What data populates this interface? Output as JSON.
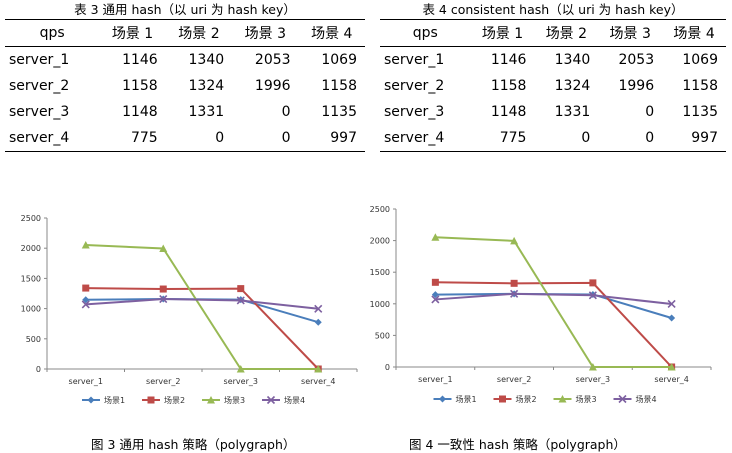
{
  "table3": {
    "caption": "表 3 通用 hash（以 uri 为 hash key）",
    "header": [
      "qps",
      "场景 1",
      "场景 2",
      "场景 3",
      "场景 4"
    ],
    "rows": [
      [
        "server_1",
        "1146",
        "1340",
        "2053",
        "1069"
      ],
      [
        "server_2",
        "1158",
        "1324",
        "1996",
        "1158"
      ],
      [
        "server_3",
        "1148",
        "1331",
        "0",
        "1135"
      ],
      [
        "server_4",
        "775",
        "0",
        "0",
        "997"
      ]
    ]
  },
  "table4": {
    "caption": "表 4 consistent hash（以 uri 为 hash key）",
    "header": [
      "qps",
      "场景 1",
      "场景 2",
      "场景 3",
      "场景 4"
    ],
    "rows": [
      [
        "server_1",
        "1146",
        "1340",
        "2053",
        "1069"
      ],
      [
        "server_2",
        "1158",
        "1324",
        "1996",
        "1158"
      ],
      [
        "server_3",
        "1148",
        "1331",
        "0",
        "1135"
      ],
      [
        "server_4",
        "775",
        "0",
        "0",
        "997"
      ]
    ]
  },
  "figure3_caption": "图 3 通用 hash 策略（polygraph）",
  "figure4_caption": "图 4 一致性 hash 策略（polygraph）",
  "chart_data": [
    {
      "type": "line",
      "title": "",
      "xlabel": "",
      "ylabel": "",
      "categories": [
        "server_1",
        "server_2",
        "server_3",
        "server_4"
      ],
      "ylim": [
        0,
        2500
      ],
      "yticks": [
        "0",
        "500",
        "1000",
        "1500",
        "2000",
        "2500"
      ],
      "legend": "bottom",
      "series": [
        {
          "name": "场景1",
          "color": "#4a7ebb",
          "marker": "diamond",
          "values": [
            1146,
            1158,
            1148,
            775
          ]
        },
        {
          "name": "场景2",
          "color": "#be4b48",
          "marker": "square",
          "values": [
            1340,
            1324,
            1331,
            0
          ]
        },
        {
          "name": "场景3",
          "color": "#98b954",
          "marker": "triangle",
          "values": [
            2053,
            1996,
            0,
            0
          ]
        },
        {
          "name": "场景4",
          "color": "#7d60a0",
          "marker": "x",
          "values": [
            1069,
            1158,
            1135,
            997
          ]
        }
      ]
    },
    {
      "type": "line",
      "title": "",
      "xlabel": "",
      "ylabel": "",
      "categories": [
        "server_1",
        "server_2",
        "server_3",
        "server_4"
      ],
      "ylim": [
        0,
        2500
      ],
      "yticks": [
        "0",
        "500",
        "1000",
        "1500",
        "2000",
        "2500"
      ],
      "legend": "bottom",
      "series": [
        {
          "name": "场景1",
          "color": "#4a7ebb",
          "marker": "diamond",
          "values": [
            1146,
            1158,
            1148,
            775
          ]
        },
        {
          "name": "场景2",
          "color": "#be4b48",
          "marker": "square",
          "values": [
            1340,
            1324,
            1331,
            0
          ]
        },
        {
          "name": "场景3",
          "color": "#98b954",
          "marker": "triangle",
          "values": [
            2053,
            1996,
            0,
            0
          ]
        },
        {
          "name": "场景4",
          "color": "#7d60a0",
          "marker": "x",
          "values": [
            1069,
            1158,
            1135,
            997
          ]
        }
      ]
    }
  ]
}
